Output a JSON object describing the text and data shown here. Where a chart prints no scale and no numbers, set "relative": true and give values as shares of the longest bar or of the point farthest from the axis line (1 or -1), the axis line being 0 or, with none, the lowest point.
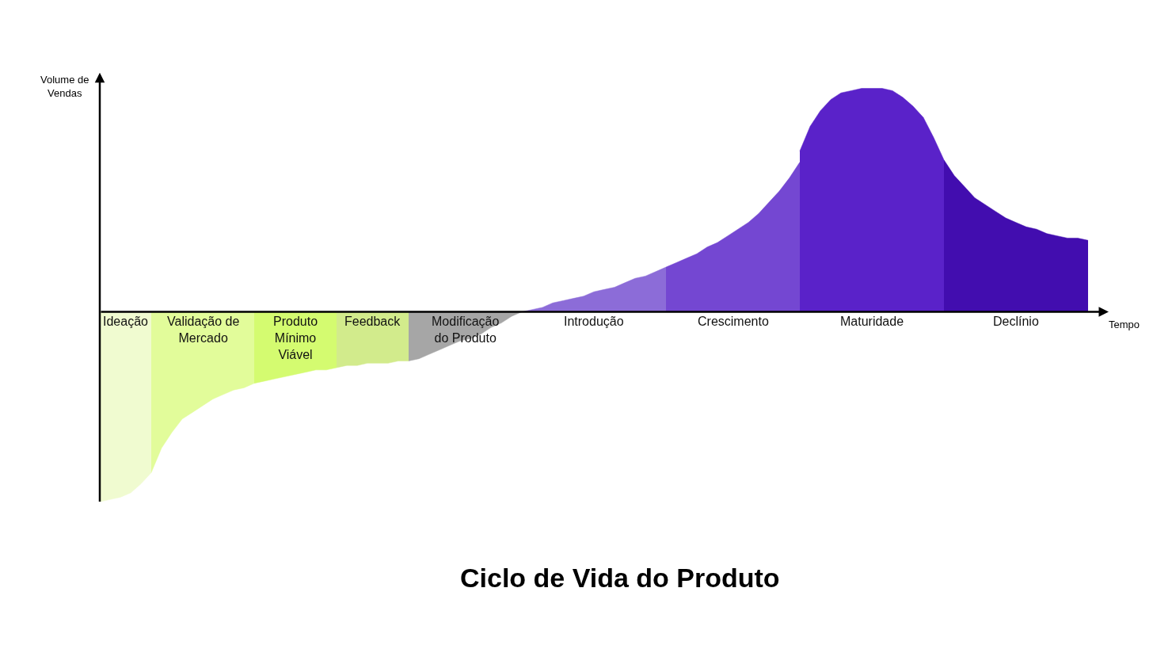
{
  "chart_data": {
    "type": "area",
    "relative": true,
    "tick_labels": false,
    "title": "Ciclo de Vida do Produto",
    "xlabel": "Tempo",
    "ylabel": "Volume de\nVendas",
    "categories": [
      null,
      null,
      null,
      null,
      null,
      null,
      null,
      null,
      null,
      null,
      null,
      null,
      null,
      null,
      null,
      null,
      null,
      null,
      null,
      null,
      null,
      null,
      null,
      null,
      null,
      null,
      null,
      null,
      null,
      null,
      null,
      null,
      null,
      null,
      null,
      null,
      null,
      null,
      null,
      null,
      null,
      null,
      null,
      null,
      null,
      null,
      null,
      null,
      null,
      null,
      null,
      null,
      null,
      null,
      null,
      null,
      null,
      null,
      null,
      null,
      null,
      null,
      null,
      null,
      null,
      null,
      null,
      null,
      null,
      null,
      null,
      null,
      null,
      null,
      null,
      null,
      null,
      null,
      null,
      null,
      null,
      null,
      null,
      null,
      null,
      null,
      null,
      null,
      null,
      null,
      null,
      null,
      null,
      null,
      null,
      null,
      null
    ],
    "series": [
      {
        "name": "Ideação",
        "color": "#f0fbd0",
        "values": [
          -0.85,
          -0.84,
          -0.83,
          -0.81,
          -0.77,
          -0.72,
          null,
          null,
          null,
          null,
          null,
          null,
          null,
          null,
          null,
          null,
          null,
          null,
          null,
          null,
          null,
          null,
          null,
          null,
          null,
          null,
          null,
          null,
          null,
          null,
          null,
          null,
          null,
          null,
          null,
          null,
          null,
          null,
          null,
          null,
          null,
          null,
          null,
          null,
          null,
          null,
          null,
          null,
          null,
          null,
          null,
          null,
          null,
          null,
          null,
          null,
          null,
          null,
          null,
          null,
          null,
          null,
          null,
          null,
          null,
          null,
          null,
          null,
          null,
          null,
          null,
          null,
          null,
          null,
          null,
          null,
          null,
          null,
          null,
          null,
          null,
          null,
          null,
          null,
          null,
          null,
          null,
          null,
          null,
          null,
          null,
          null,
          null,
          null,
          null,
          null,
          null
        ]
      },
      {
        "name": "Validação de\nMercado",
        "color": "#e2fc9a",
        "values": [
          null,
          null,
          null,
          null,
          null,
          -0.72,
          -0.61,
          -0.54,
          -0.48,
          -0.45,
          -0.42,
          -0.39,
          -0.37,
          -0.35,
          -0.34,
          -0.32,
          null,
          null,
          null,
          null,
          null,
          null,
          null,
          null,
          null,
          null,
          null,
          null,
          null,
          null,
          null,
          null,
          null,
          null,
          null,
          null,
          null,
          null,
          null,
          null,
          null,
          null,
          null,
          null,
          null,
          null,
          null,
          null,
          null,
          null,
          null,
          null,
          null,
          null,
          null,
          null,
          null,
          null,
          null,
          null,
          null,
          null,
          null,
          null,
          null,
          null,
          null,
          null,
          null,
          null,
          null,
          null,
          null,
          null,
          null,
          null,
          null,
          null,
          null,
          null,
          null,
          null,
          null,
          null,
          null,
          null,
          null,
          null,
          null,
          null,
          null,
          null,
          null,
          null,
          null,
          null,
          null
        ]
      },
      {
        "name": "Produto\nMínimo\nViável",
        "color": "#d4fb70",
        "values": [
          null,
          null,
          null,
          null,
          null,
          null,
          null,
          null,
          null,
          null,
          null,
          null,
          null,
          null,
          null,
          -0.32,
          -0.31,
          -0.3,
          -0.29,
          -0.28,
          -0.27,
          -0.26,
          -0.26,
          -0.25,
          null,
          null,
          null,
          null,
          null,
          null,
          null,
          null,
          null,
          null,
          null,
          null,
          null,
          null,
          null,
          null,
          null,
          null,
          null,
          null,
          null,
          null,
          null,
          null,
          null,
          null,
          null,
          null,
          null,
          null,
          null,
          null,
          null,
          null,
          null,
          null,
          null,
          null,
          null,
          null,
          null,
          null,
          null,
          null,
          null,
          null,
          null,
          null,
          null,
          null,
          null,
          null,
          null,
          null,
          null,
          null,
          null,
          null,
          null,
          null,
          null,
          null,
          null,
          null,
          null,
          null,
          null,
          null,
          null,
          null,
          null,
          null,
          null
        ]
      },
      {
        "name": "Feedback",
        "color": "#d2eb8c",
        "values": [
          null,
          null,
          null,
          null,
          null,
          null,
          null,
          null,
          null,
          null,
          null,
          null,
          null,
          null,
          null,
          null,
          null,
          null,
          null,
          null,
          null,
          null,
          null,
          -0.25,
          -0.24,
          -0.24,
          -0.23,
          -0.23,
          -0.23,
          -0.22,
          -0.22,
          null,
          null,
          null,
          null,
          null,
          null,
          null,
          null,
          null,
          null,
          null,
          null,
          null,
          null,
          null,
          null,
          null,
          null,
          null,
          null,
          null,
          null,
          null,
          null,
          null,
          null,
          null,
          null,
          null,
          null,
          null,
          null,
          null,
          null,
          null,
          null,
          null,
          null,
          null,
          null,
          null,
          null,
          null,
          null,
          null,
          null,
          null,
          null,
          null,
          null,
          null,
          null,
          null,
          null,
          null,
          null,
          null,
          null,
          null,
          null,
          null,
          null,
          null,
          null,
          null,
          null
        ]
      },
      {
        "name": "Modificação\ndo Produto",
        "color": "#a6a6a6",
        "values": [
          null,
          null,
          null,
          null,
          null,
          null,
          null,
          null,
          null,
          null,
          null,
          null,
          null,
          null,
          null,
          null,
          null,
          null,
          null,
          null,
          null,
          null,
          null,
          null,
          null,
          null,
          null,
          null,
          null,
          null,
          -0.22,
          -0.21,
          -0.19,
          -0.17,
          -0.15,
          -0.13,
          -0.12,
          -0.1,
          -0.07,
          -0.05,
          -0.02,
          0,
          null,
          null,
          null,
          null,
          null,
          null,
          null,
          null,
          null,
          null,
          null,
          null,
          null,
          null,
          null,
          null,
          null,
          null,
          null,
          null,
          null,
          null,
          null,
          null,
          null,
          null,
          null,
          null,
          null,
          null,
          null,
          null,
          null,
          null,
          null,
          null,
          null,
          null,
          null,
          null,
          null,
          null,
          null,
          null,
          null,
          null,
          null,
          null,
          null,
          null,
          null,
          null,
          null,
          null,
          null
        ]
      },
      {
        "name": "Introdução",
        "color": "#8c6cd8",
        "values": [
          null,
          null,
          null,
          null,
          null,
          null,
          null,
          null,
          null,
          null,
          null,
          null,
          null,
          null,
          null,
          null,
          null,
          null,
          null,
          null,
          null,
          null,
          null,
          null,
          null,
          null,
          null,
          null,
          null,
          null,
          null,
          null,
          null,
          null,
          null,
          null,
          null,
          null,
          null,
          null,
          null,
          0,
          0.01,
          0.02,
          0.04,
          0.05,
          0.06,
          0.07,
          0.09,
          0.1,
          0.11,
          0.13,
          0.15,
          0.16,
          0.18,
          0.2,
          null,
          null,
          null,
          null,
          null,
          null,
          null,
          null,
          null,
          null,
          null,
          null,
          null,
          null,
          null,
          null,
          null,
          null,
          null,
          null,
          null,
          null,
          null,
          null,
          null,
          null,
          null,
          null,
          null,
          null,
          null,
          null,
          null,
          null,
          null,
          null,
          null,
          null,
          null,
          null,
          null
        ]
      },
      {
        "name": "Crescimento",
        "color": "#7447d2",
        "values": [
          null,
          null,
          null,
          null,
          null,
          null,
          null,
          null,
          null,
          null,
          null,
          null,
          null,
          null,
          null,
          null,
          null,
          null,
          null,
          null,
          null,
          null,
          null,
          null,
          null,
          null,
          null,
          null,
          null,
          null,
          null,
          null,
          null,
          null,
          null,
          null,
          null,
          null,
          null,
          null,
          null,
          null,
          null,
          null,
          null,
          null,
          null,
          null,
          null,
          null,
          null,
          null,
          null,
          null,
          null,
          0.2,
          0.22,
          0.24,
          0.26,
          0.29,
          0.31,
          0.34,
          0.37,
          0.4,
          0.44,
          0.49,
          0.54,
          0.6,
          0.67,
          null,
          null,
          null,
          null,
          null,
          null,
          null,
          null,
          null,
          null,
          null,
          null,
          null,
          null,
          null,
          null,
          null,
          null,
          null,
          null,
          null,
          null,
          null,
          null,
          null,
          null,
          null,
          null
        ]
      },
      {
        "name": "Maturidade",
        "color": "#5a22c9",
        "values": [
          null,
          null,
          null,
          null,
          null,
          null,
          null,
          null,
          null,
          null,
          null,
          null,
          null,
          null,
          null,
          null,
          null,
          null,
          null,
          null,
          null,
          null,
          null,
          null,
          null,
          null,
          null,
          null,
          null,
          null,
          null,
          null,
          null,
          null,
          null,
          null,
          null,
          null,
          null,
          null,
          null,
          null,
          null,
          null,
          null,
          null,
          null,
          null,
          null,
          null,
          null,
          null,
          null,
          null,
          null,
          null,
          null,
          null,
          null,
          null,
          null,
          null,
          null,
          null,
          null,
          null,
          null,
          null,
          0.72,
          0.83,
          0.9,
          0.95,
          0.98,
          0.99,
          1,
          1,
          1,
          0.99,
          0.96,
          0.92,
          0.87,
          0.78,
          0.68,
          null,
          null,
          null,
          null,
          null,
          null,
          null,
          null,
          null,
          null,
          null,
          null,
          null,
          null
        ]
      },
      {
        "name": "Declínio",
        "color": "#420daf",
        "values": [
          null,
          null,
          null,
          null,
          null,
          null,
          null,
          null,
          null,
          null,
          null,
          null,
          null,
          null,
          null,
          null,
          null,
          null,
          null,
          null,
          null,
          null,
          null,
          null,
          null,
          null,
          null,
          null,
          null,
          null,
          null,
          null,
          null,
          null,
          null,
          null,
          null,
          null,
          null,
          null,
          null,
          null,
          null,
          null,
          null,
          null,
          null,
          null,
          null,
          null,
          null,
          null,
          null,
          null,
          null,
          null,
          null,
          null,
          null,
          null,
          null,
          null,
          null,
          null,
          null,
          null,
          null,
          null,
          null,
          null,
          null,
          null,
          null,
          null,
          null,
          null,
          null,
          null,
          null,
          null,
          null,
          null,
          0.68,
          0.61,
          0.56,
          0.51,
          0.48,
          0.45,
          0.42,
          0.4,
          0.38,
          0.37,
          0.35,
          0.34,
          0.33,
          0.33,
          0.32
        ]
      }
    ]
  }
}
